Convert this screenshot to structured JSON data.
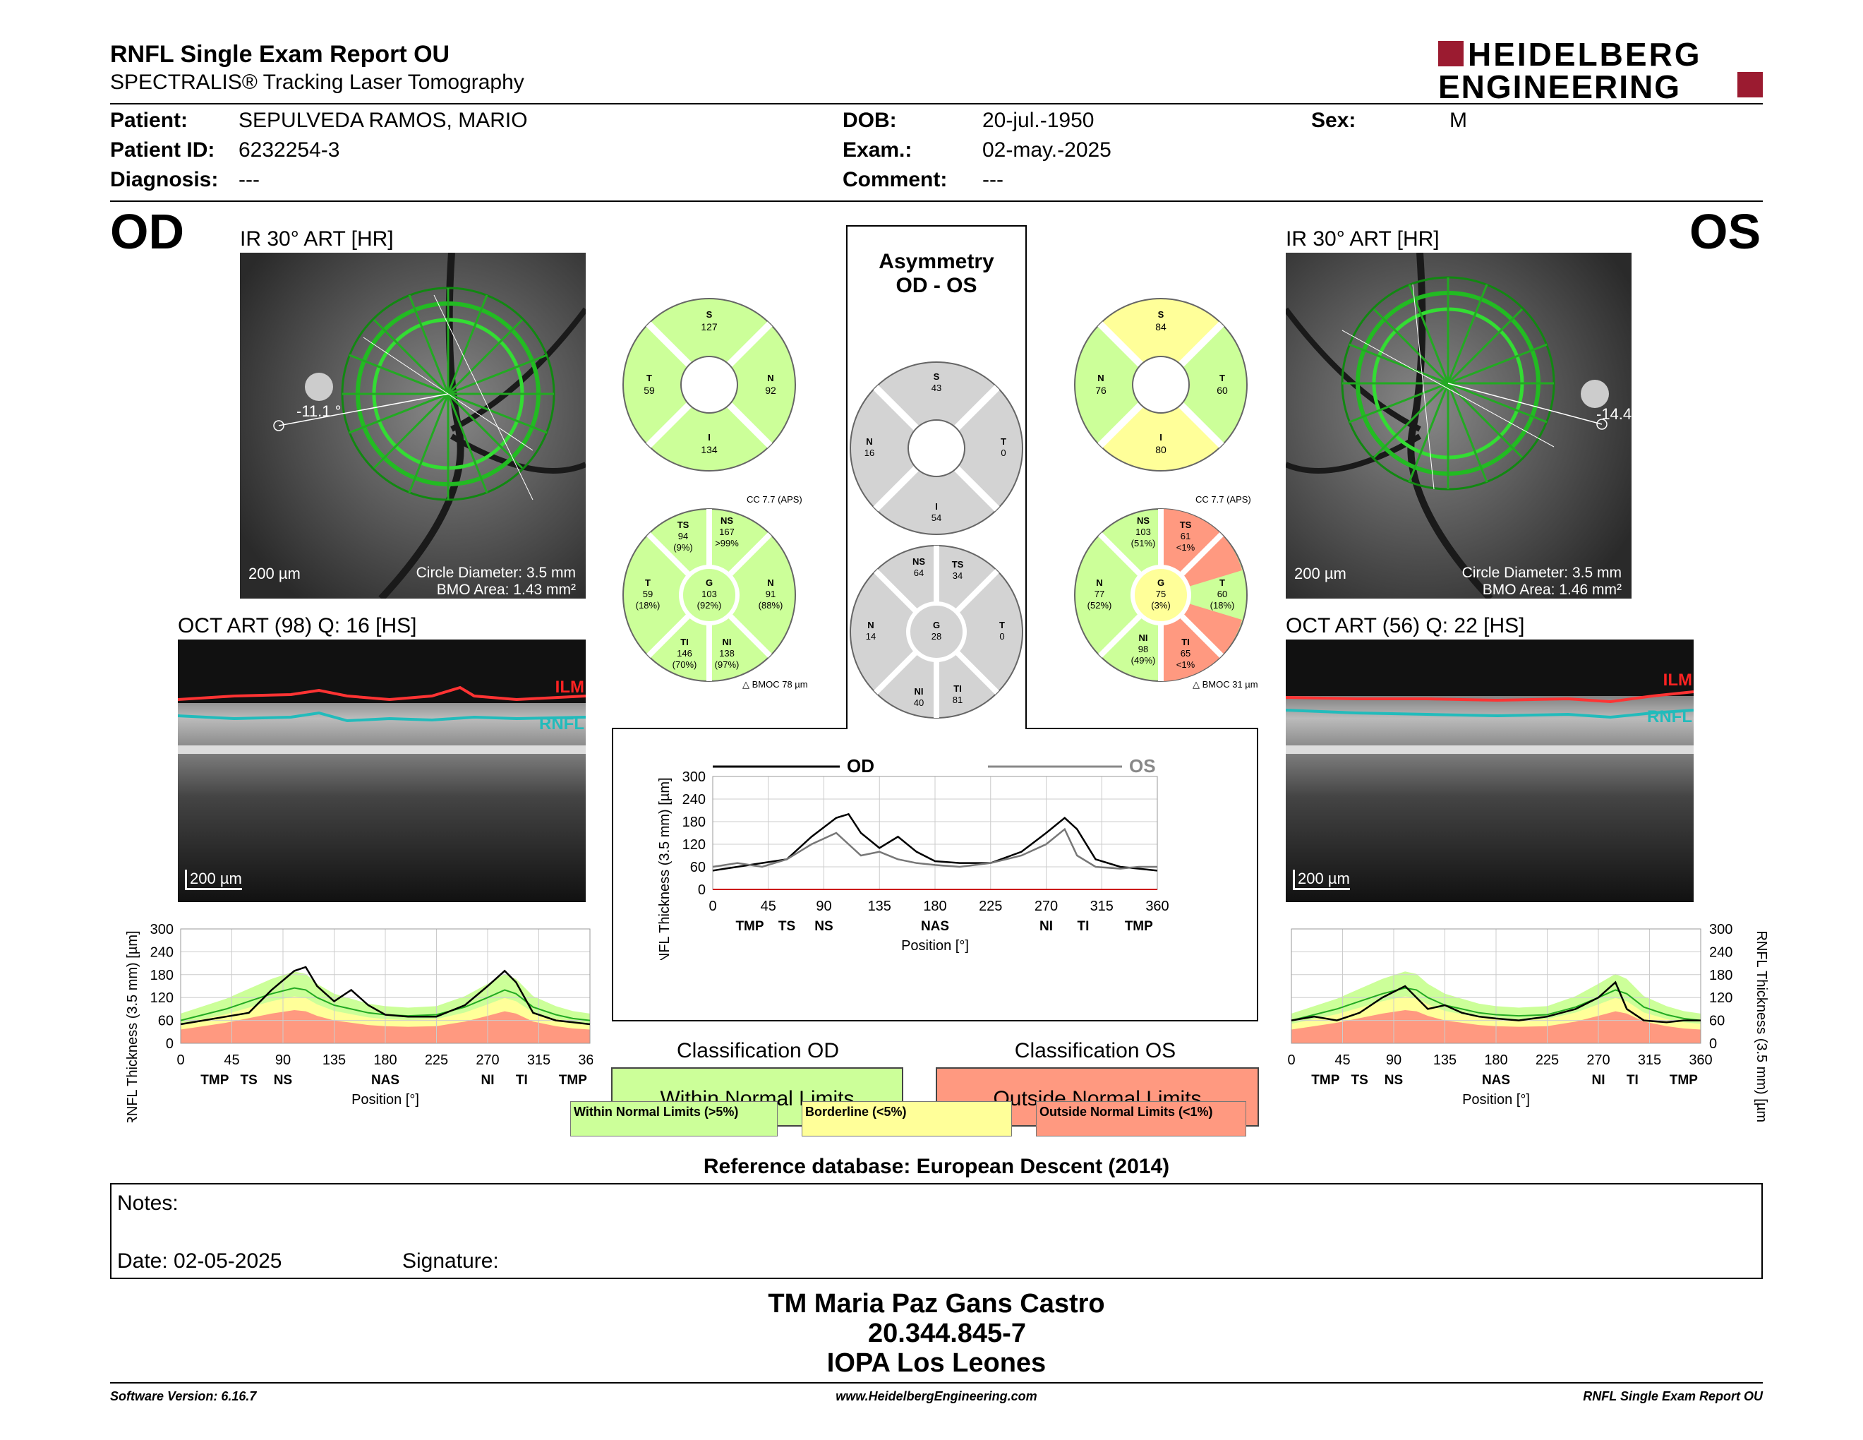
{
  "header": {
    "title": "RNFL Single Exam Report OU",
    "subtitle": "SPECTRALIS® Tracking Laser Tomography",
    "logo_line1": "HEIDELBERG",
    "logo_line2": "ENGINEERING"
  },
  "patient": {
    "patient_label": "Patient:",
    "patient_value": "SEPULVEDA RAMOS, MARIO",
    "id_label": "Patient ID:",
    "id_value": "6232254-3",
    "diag_label": "Diagnosis:",
    "diag_value": "---",
    "dob_label": "DOB:",
    "dob_value": "20-jul.-1950",
    "exam_label": "Exam.:",
    "exam_value": "02-may.-2025",
    "comment_label": "Comment:",
    "comment_value": "---",
    "sex_label": "Sex:",
    "sex_value": "M"
  },
  "od": {
    "eye": "OD",
    "ir_title": "IR 30° ART [HR]",
    "angle": "-11.1 °",
    "scale": "200 µm",
    "circle": "Circle Diameter: 3.5 mm",
    "bmo": "BMO Area: 1.43 mm²",
    "oct_title": "OCT ART (98) Q: 16 [HS]",
    "oct_scale": "200 µm",
    "ilm": "ILM",
    "rnfl": "RNFL",
    "sectors4": {
      "S": "127",
      "T": "59",
      "N": "92",
      "I": "134"
    },
    "cc": "CC 7.7 (APS)",
    "bmoc": "BMOC 78 µm",
    "sectors6": {
      "TS": [
        "TS",
        "94",
        "(9%)"
      ],
      "NS": [
        "NS",
        "167",
        ">99%"
      ],
      "T": [
        "T",
        "59",
        "(18%)"
      ],
      "G": [
        "G",
        "103",
        "(92%)"
      ],
      "N": [
        "N",
        "91",
        "(88%)"
      ],
      "TI": [
        "TI",
        "146",
        "(70%)"
      ],
      "NI": [
        "NI",
        "138",
        "(97%)"
      ]
    }
  },
  "os": {
    "eye": "OS",
    "ir_title": "IR 30° ART [HR]",
    "angle": "-14.4",
    "scale": "200 µm",
    "circle": "Circle Diameter: 3.5 mm",
    "bmo": "BMO Area: 1.46 mm²",
    "oct_title": "OCT ART (56) Q: 22 [HS]",
    "oct_scale": "200 µm",
    "ilm": "ILM",
    "rnfl": "RNFL",
    "sectors4": {
      "S": "84",
      "N": "76",
      "T": "60",
      "I": "80"
    },
    "cc": "CC 7.7 (APS)",
    "bmoc": "BMOC 31 µm",
    "sectors6": {
      "NS": [
        "NS",
        "103",
        "(51%)"
      ],
      "TS": [
        "TS",
        "61",
        "<1%"
      ],
      "N": [
        "N",
        "77",
        "(52%)"
      ],
      "G": [
        "G",
        "75",
        "(3%)"
      ],
      "T": [
        "T",
        "60",
        "(18%)"
      ],
      "NI": [
        "NI",
        "98",
        "(49%)"
      ],
      "TI": [
        "TI",
        "65",
        "<1%"
      ]
    }
  },
  "asym": {
    "title1": "Asymmetry",
    "title2": "OD - OS",
    "s4": {
      "S": "43",
      "N": "16",
      "T": "0",
      "I": "54"
    },
    "s6": {
      "NS": "64",
      "TS": "34",
      "N": "14",
      "G": "28",
      "T": "0",
      "NI": "40",
      "TI": "81"
    }
  },
  "chart_labels": {
    "ylabel": "RNFL Thickness (3.5 mm) [µm]",
    "xlabel": "Position [°]",
    "od_legend": "OD",
    "os_legend": "OS",
    "yticks": [
      "300",
      "240",
      "180",
      "120",
      "60",
      "0"
    ],
    "yticks_mid": [
      "300",
      "240",
      "180",
      "120",
      "60",
      "0"
    ],
    "xticks": [
      "0",
      "45",
      "90",
      "135",
      "180",
      "225",
      "270",
      "315",
      "360"
    ],
    "sectors": [
      "TMP",
      "TS",
      "NS",
      "NAS",
      "NI",
      "TI",
      "TMP"
    ]
  },
  "chart_data": [
    {
      "type": "line",
      "title": "",
      "xlabel": "Position [°]",
      "ylabel": "RNFL Thickness (3.5 mm) [µm]",
      "xlim": [
        0,
        360
      ],
      "ylim": [
        0,
        300
      ],
      "x": [
        0,
        20,
        40,
        60,
        80,
        100,
        110,
        120,
        135,
        150,
        165,
        180,
        200,
        225,
        250,
        270,
        285,
        295,
        310,
        330,
        345,
        360
      ],
      "series": [
        {
          "name": "OD",
          "values": [
            50,
            60,
            70,
            80,
            140,
            190,
            200,
            150,
            110,
            140,
            100,
            75,
            70,
            70,
            100,
            150,
            190,
            160,
            80,
            60,
            55,
            50
          ]
        }
      ]
    },
    {
      "type": "line",
      "title": "",
      "xlabel": "Position [°]",
      "ylabel": "RNFL Thickness (3.5 mm) [µm]",
      "xlim": [
        0,
        360
      ],
      "ylim": [
        0,
        300
      ],
      "x": [
        0,
        20,
        40,
        60,
        80,
        100,
        110,
        120,
        135,
        150,
        165,
        180,
        200,
        225,
        250,
        270,
        285,
        295,
        310,
        330,
        345,
        360
      ],
      "series": [
        {
          "name": "OD",
          "values": [
            50,
            60,
            70,
            80,
            140,
            190,
            200,
            150,
            110,
            140,
            100,
            75,
            70,
            70,
            100,
            150,
            190,
            160,
            80,
            60,
            55,
            50
          ]
        },
        {
          "name": "OS",
          "values": [
            60,
            70,
            60,
            80,
            120,
            150,
            120,
            90,
            100,
            80,
            70,
            65,
            60,
            70,
            90,
            120,
            160,
            90,
            60,
            55,
            60,
            60
          ]
        }
      ]
    },
    {
      "type": "line",
      "title": "",
      "xlabel": "Position [°]",
      "ylabel": "RNFL Thickness (3.5 mm) [µm]",
      "xlim": [
        0,
        360
      ],
      "ylim": [
        0,
        300
      ],
      "x": [
        0,
        20,
        40,
        60,
        80,
        100,
        110,
        120,
        135,
        150,
        165,
        180,
        200,
        225,
        250,
        270,
        285,
        295,
        310,
        330,
        345,
        360
      ],
      "series": [
        {
          "name": "OS",
          "values": [
            60,
            70,
            60,
            80,
            120,
            150,
            120,
            90,
            100,
            80,
            70,
            65,
            60,
            70,
            90,
            120,
            160,
            90,
            60,
            55,
            60,
            60
          ]
        }
      ]
    }
  ],
  "classification": {
    "od_title": "Classification OD",
    "od_value": "Within Normal Limits",
    "os_title": "Classification OS",
    "os_value": "Outside Normal Limits",
    "legend_wnl": "Within Normal Limits (>5%)",
    "legend_bl": "Borderline (<5%)",
    "legend_onl": "Outside Normal Limits (<1%)",
    "refdb": "Reference database: European Descent (2014)",
    "green": "#ccff99",
    "yellow": "#ffff99",
    "red": "#ff9980"
  },
  "notes": {
    "notes_label": "Notes:",
    "date_label": "Date: 02-05-2025",
    "signature_label": "Signature:"
  },
  "signature": {
    "name": "TM Maria Paz Gans Castro",
    "id": "20.344.845-7",
    "org": "IOPA Los Leones"
  },
  "footer": {
    "software": "Software Version: 6.16.7",
    "site": "www.HeidelbergEngineering.com",
    "report": "RNFL Single Exam Report OU"
  }
}
